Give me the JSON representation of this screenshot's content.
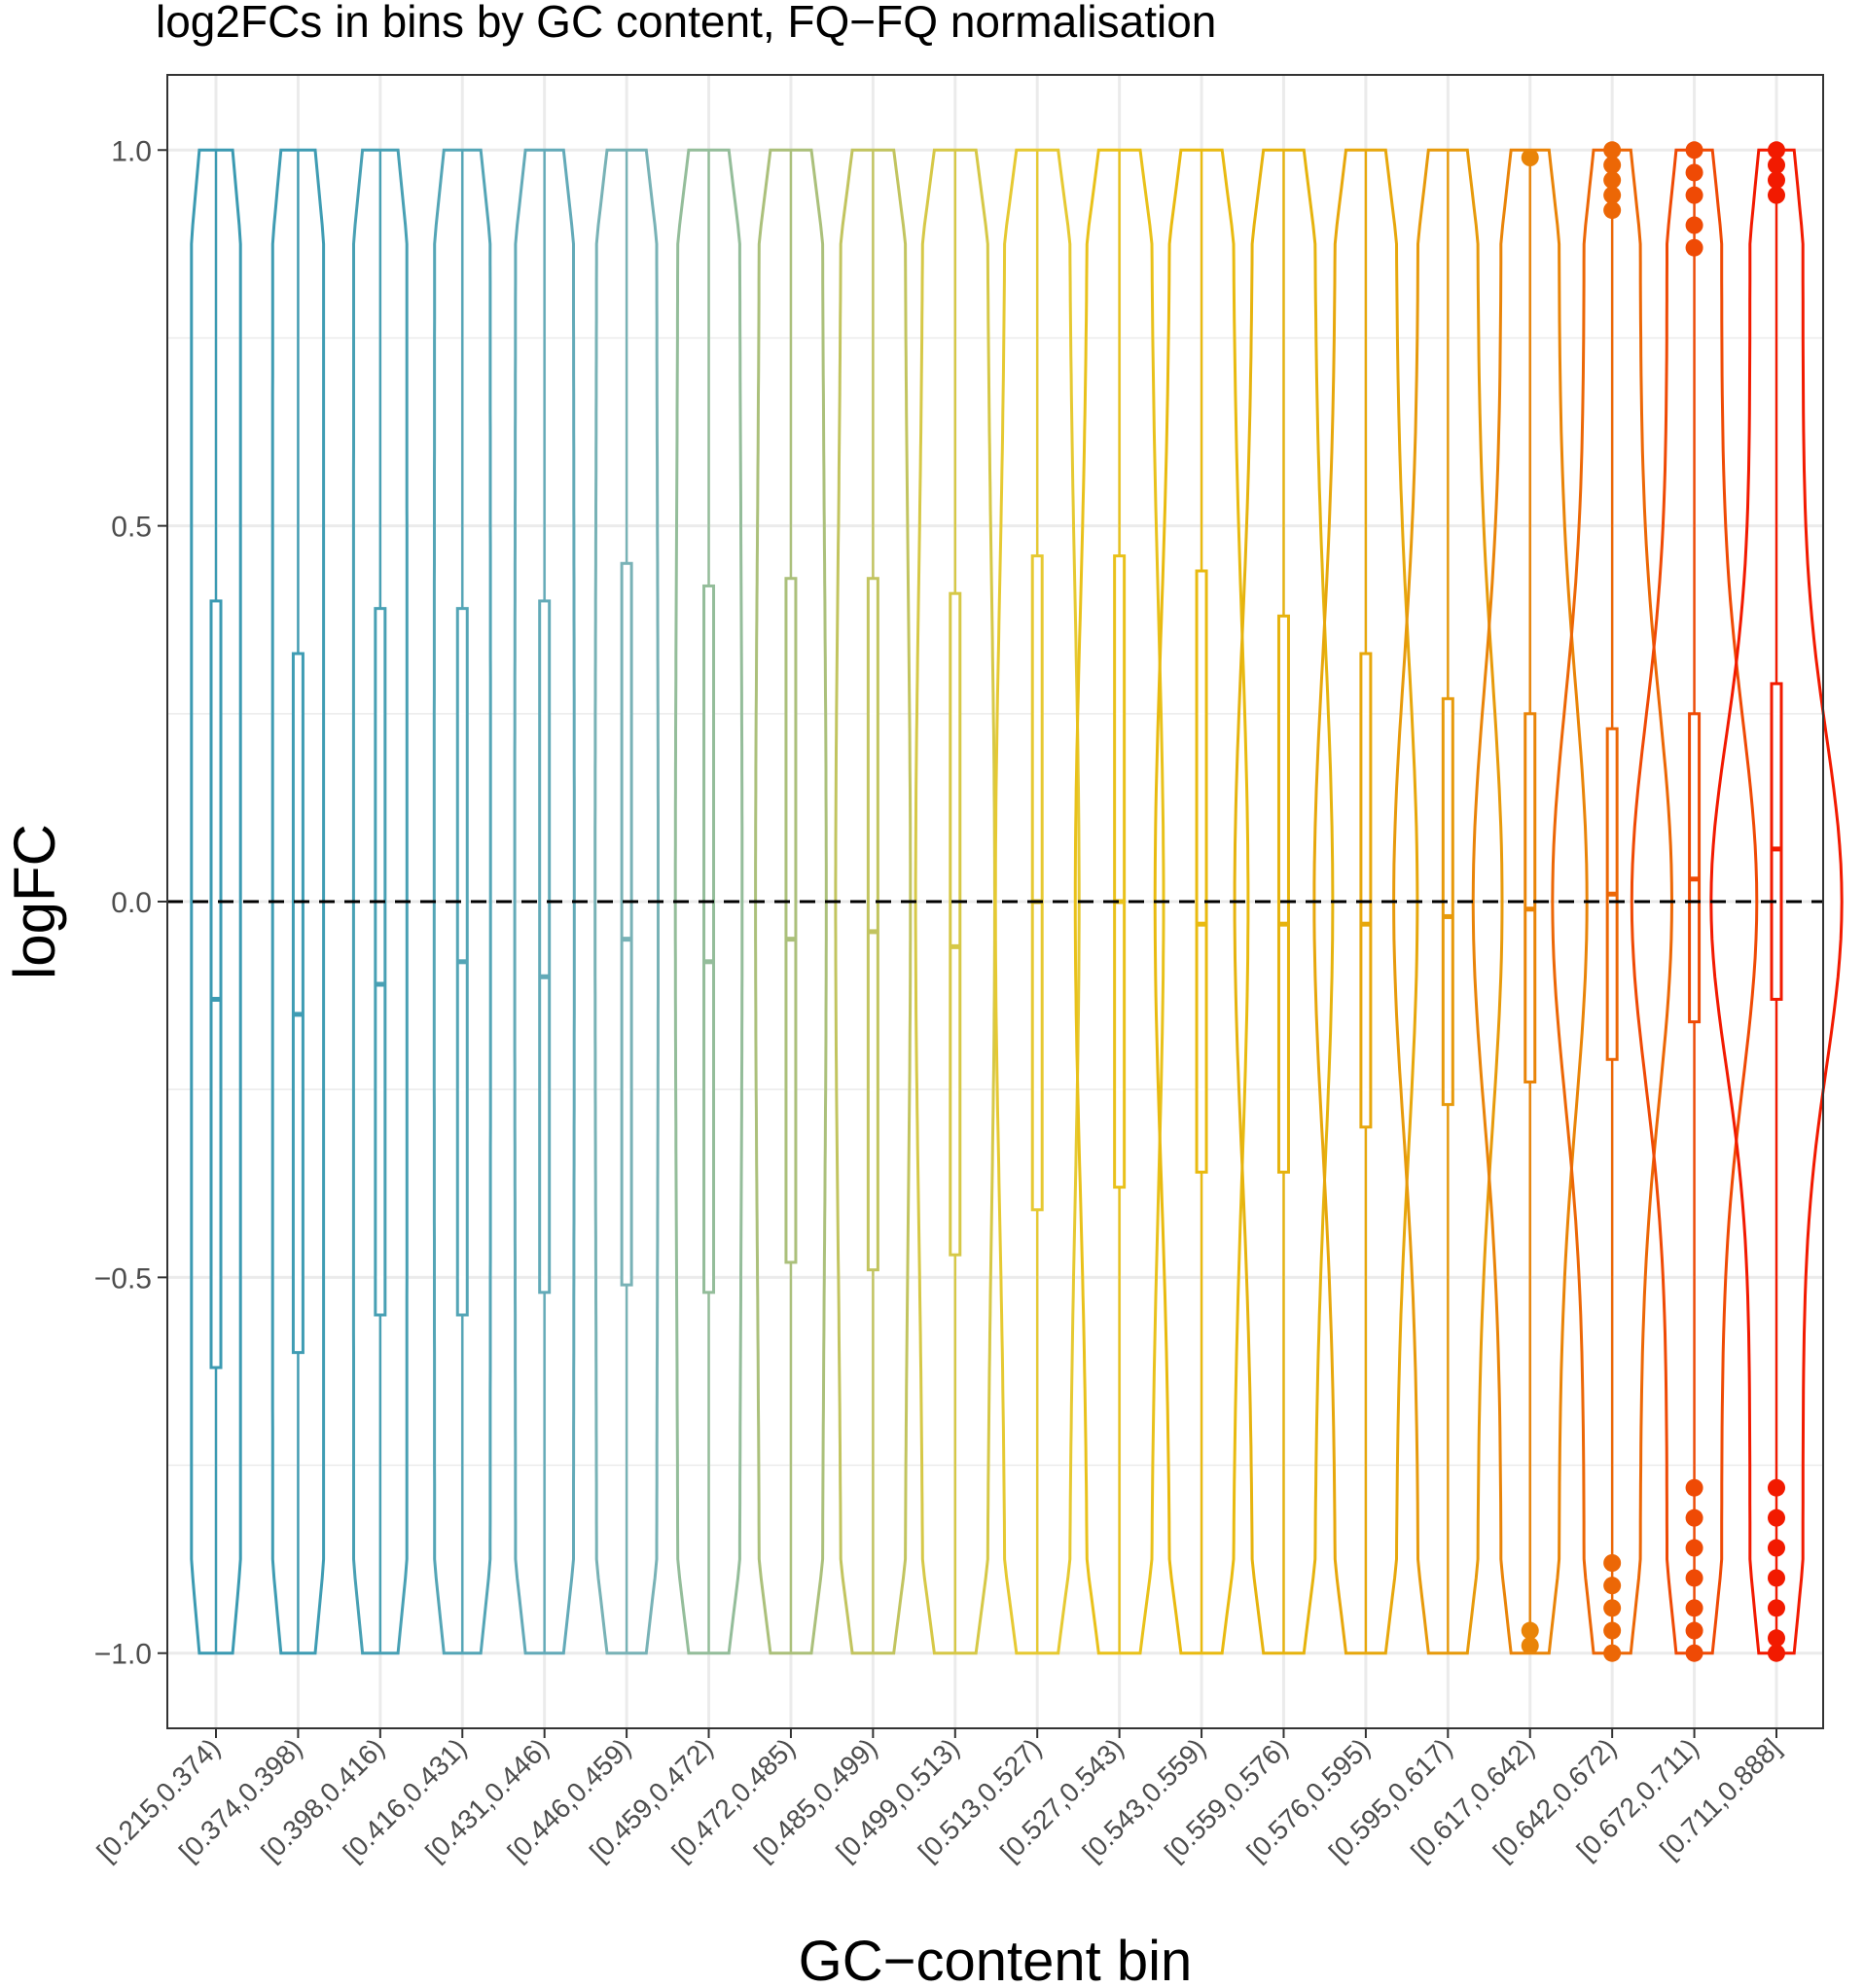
{
  "chart_data": {
    "type": "violin",
    "title": "log2FCs in bins by GC content, FQ−FQ normalisation",
    "xlabel": "GC−content bin",
    "ylabel": "logFC",
    "ylim": [
      -1.1,
      1.1
    ],
    "yticks": [
      {
        "value": 1.0,
        "label": "1.0"
      },
      {
        "value": 0.5,
        "label": "0.5"
      },
      {
        "value": 0.0,
        "label": "0.0"
      },
      {
        "value": -0.5,
        "label": "−0.5"
      },
      {
        "value": -1.0,
        "label": "−1.0"
      }
    ],
    "reference_line": {
      "y": 0,
      "style": "dashed",
      "color": "#000000"
    },
    "grid": true,
    "categories": [
      "[0.215,0.374)",
      "[0.374,0.398)",
      "[0.398,0.416)",
      "[0.416,0.431)",
      "[0.431,0.446)",
      "[0.446,0.459)",
      "[0.459,0.472)",
      "[0.472,0.485)",
      "[0.485,0.499)",
      "[0.499,0.513)",
      "[0.513,0.527)",
      "[0.527,0.543)",
      "[0.543,0.559)",
      "[0.559,0.576)",
      "[0.576,0.595)",
      "[0.595,0.617)",
      "[0.617,0.642)",
      "[0.642,0.672)",
      "[0.672,0.711)",
      "[0.711,0.888]"
    ],
    "colors": [
      "#3b9ab2",
      "#3f9cb3",
      "#48a0b4",
      "#54a5b6",
      "#63aab8",
      "#78b2b6",
      "#94bd9a",
      "#abc07b",
      "#c2c45f",
      "#d6c847",
      "#e6c932",
      "#e9c11a",
      "#e9ba10",
      "#e6b30e",
      "#e7a70c",
      "#e79a0b",
      "#e98408",
      "#ec6706",
      "#ef4a05",
      "#f21a00"
    ],
    "boxes": [
      {
        "q1": -0.62,
        "median": -0.13,
        "q3": 0.4
      },
      {
        "q1": -0.6,
        "median": -0.15,
        "q3": 0.33
      },
      {
        "q1": -0.55,
        "median": -0.11,
        "q3": 0.39
      },
      {
        "q1": -0.55,
        "median": -0.08,
        "q3": 0.39
      },
      {
        "q1": -0.52,
        "median": -0.1,
        "q3": 0.4
      },
      {
        "q1": -0.51,
        "median": -0.05,
        "q3": 0.45
      },
      {
        "q1": -0.52,
        "median": -0.08,
        "q3": 0.42
      },
      {
        "q1": -0.48,
        "median": -0.05,
        "q3": 0.43
      },
      {
        "q1": -0.49,
        "median": -0.04,
        "q3": 0.43
      },
      {
        "q1": -0.47,
        "median": -0.06,
        "q3": 0.41
      },
      {
        "q1": -0.41,
        "median": 0.0,
        "q3": 0.46
      },
      {
        "q1": -0.38,
        "median": 0.0,
        "q3": 0.46
      },
      {
        "q1": -0.36,
        "median": -0.03,
        "q3": 0.44
      },
      {
        "q1": -0.36,
        "median": -0.03,
        "q3": 0.38
      },
      {
        "q1": -0.3,
        "median": -0.03,
        "q3": 0.33
      },
      {
        "q1": -0.27,
        "median": -0.02,
        "q3": 0.27
      },
      {
        "q1": -0.24,
        "median": -0.01,
        "q3": 0.25
      },
      {
        "q1": -0.21,
        "median": 0.01,
        "q3": 0.23
      },
      {
        "q1": -0.16,
        "median": 0.03,
        "q3": 0.25
      },
      {
        "q1": -0.13,
        "median": 0.07,
        "q3": 0.29
      }
    ],
    "outliers": [
      {
        "bin": 16,
        "values": [
          0.99,
          -0.99,
          -0.97
        ]
      },
      {
        "bin": 17,
        "values": [
          1.0,
          0.98,
          0.96,
          0.94,
          0.92,
          -0.88,
          -0.91,
          -0.94,
          -0.97,
          -1.0
        ]
      },
      {
        "bin": 18,
        "values": [
          1.0,
          0.97,
          0.94,
          0.9,
          0.87,
          -0.78,
          -0.82,
          -0.86,
          -0.9,
          -0.94,
          -0.97,
          -1.0
        ]
      },
      {
        "bin": 19,
        "values": [
          1.0,
          0.98,
          0.96,
          0.94,
          -0.78,
          -0.82,
          -0.86,
          -0.9,
          -0.94,
          -0.98,
          -1.0
        ]
      }
    ]
  }
}
